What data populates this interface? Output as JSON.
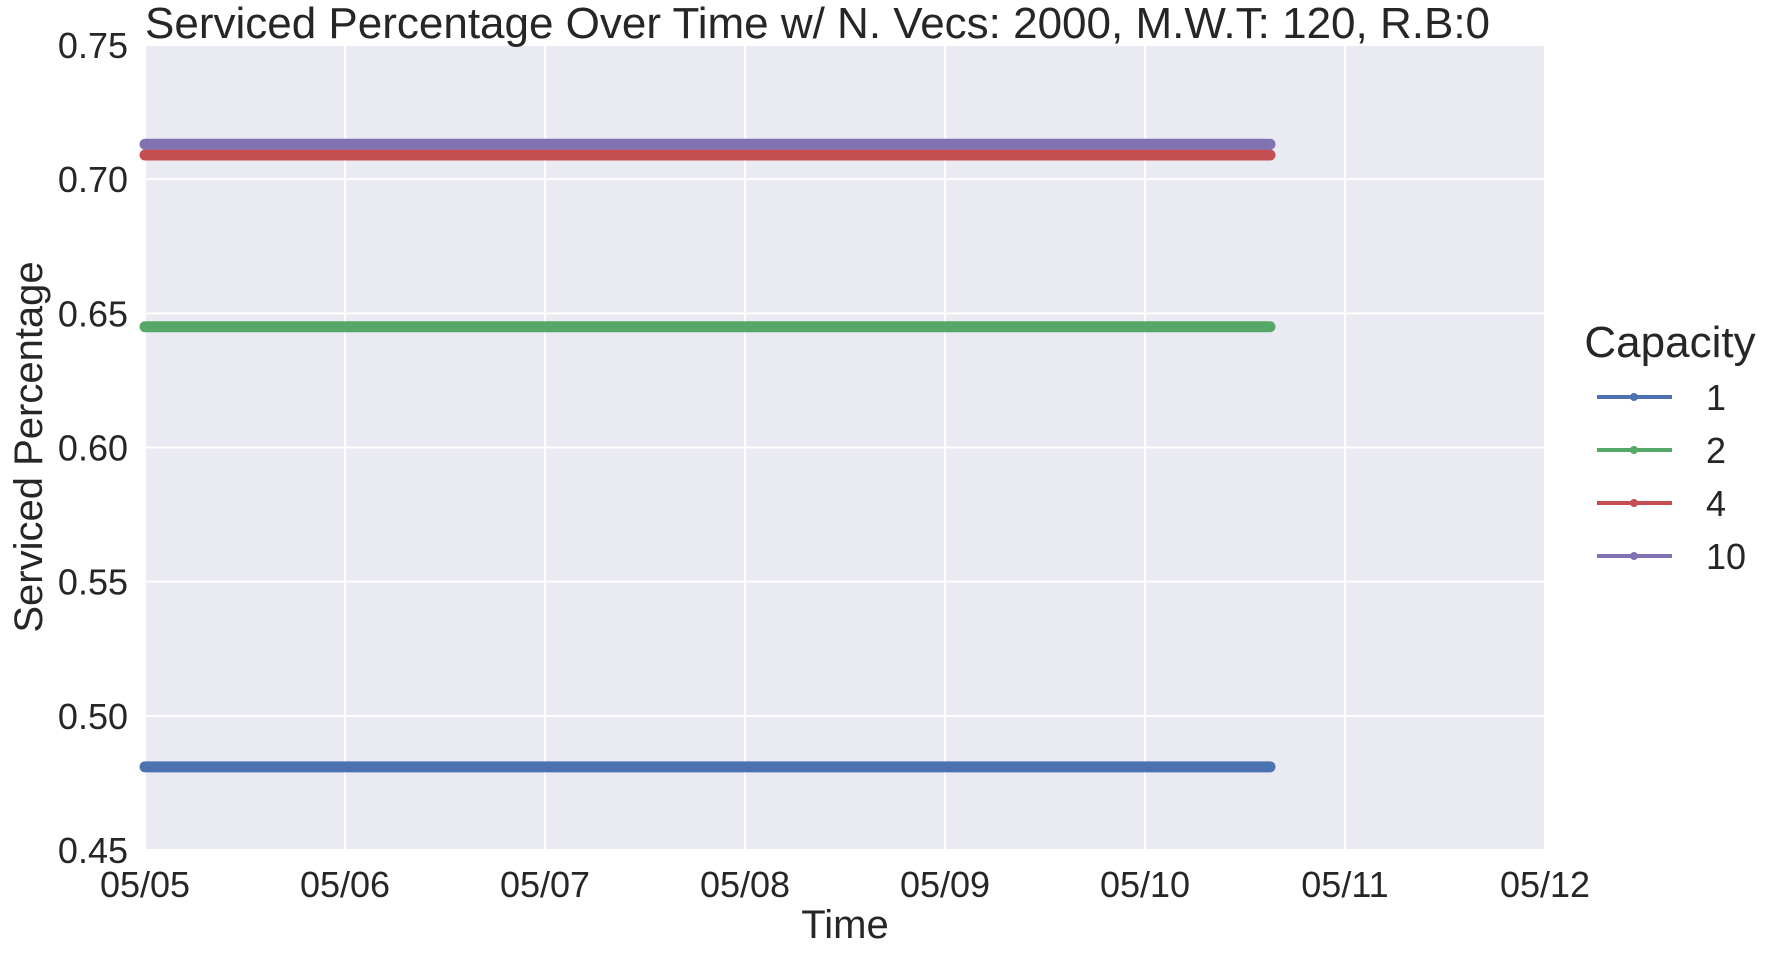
{
  "chart_data": {
    "type": "line",
    "title": "Serviced Percentage Over Time w/ N. Vecs: 2000, M.W.T: 120, R.B:0",
    "xlabel": "Time",
    "ylabel": "Serviced Percentage",
    "x_ticks": [
      "05/05",
      "05/06",
      "05/07",
      "05/08",
      "05/09",
      "05/10",
      "05/11",
      "05/12"
    ],
    "xlim": [
      "05/05 00:00",
      "05/12 00:00"
    ],
    "ylim": [
      0.45,
      0.75
    ],
    "y_ticks": [
      "0.45",
      "0.50",
      "0.55",
      "0.60",
      "0.65",
      "0.70",
      "0.75"
    ],
    "grid": true,
    "legend": {
      "title": "Capacity",
      "placement": "right-outside"
    },
    "series": [
      {
        "name": "1",
        "color": "#4c72b0",
        "x_start": "05/05 00:00",
        "x_end": "05/10 15:00",
        "value": 0.481
      },
      {
        "name": "2",
        "color": "#55a868",
        "x_start": "05/05 00:00",
        "x_end": "05/10 15:00",
        "value": 0.645
      },
      {
        "name": "4",
        "color": "#c44e52",
        "x_start": "05/05 00:00",
        "x_end": "05/10 15:00",
        "value": 0.709
      },
      {
        "name": "10",
        "color": "#8172b2",
        "x_start": "05/05 00:00",
        "x_end": "05/10 15:00",
        "value": 0.713
      }
    ]
  }
}
